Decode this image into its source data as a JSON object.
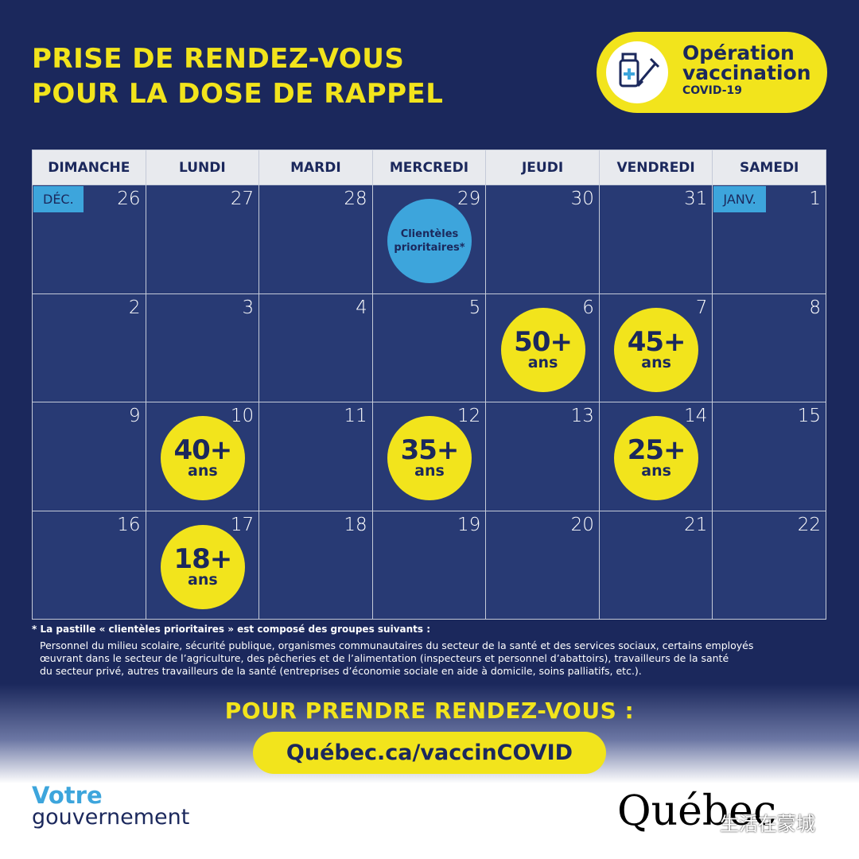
{
  "header": {
    "title_lines": [
      "PRISE DE RENDEZ-VOUS",
      "POUR LA DOSE DE RAPPEL"
    ]
  },
  "badge": {
    "lines": [
      "Opération",
      "vaccination"
    ],
    "small": "COVID-19"
  },
  "calendar": {
    "days": [
      "DIMANCHE",
      "LUNDI",
      "MARDI",
      "MERCREDI",
      "JEUDI",
      "VENDREDI",
      "SAMEDI"
    ],
    "weeks": [
      [
        {
          "day": 26,
          "month": "DÉC."
        },
        {
          "day": 27
        },
        {
          "day": 28
        },
        {
          "day": 29,
          "pill": {
            "lines": [
              "Clientèles",
              "prioritaires*"
            ]
          }
        },
        {
          "day": 30
        },
        {
          "day": 31
        },
        {
          "day": 1,
          "month": "JANV."
        }
      ],
      [
        {
          "day": 2
        },
        {
          "day": 3
        },
        {
          "day": 4
        },
        {
          "day": 5
        },
        {
          "day": 6,
          "pill": {
            "main": "50+",
            "sub": "ans"
          }
        },
        {
          "day": 7,
          "pill": {
            "main": "45+",
            "sub": "ans"
          }
        },
        {
          "day": 8
        }
      ],
      [
        {
          "day": 9
        },
        {
          "day": 10,
          "pill": {
            "main": "40+",
            "sub": "ans"
          }
        },
        {
          "day": 11
        },
        {
          "day": 12,
          "pill": {
            "main": "35+",
            "sub": "ans"
          }
        },
        {
          "day": 13
        },
        {
          "day": 14,
          "pill": {
            "main": "25+",
            "sub": "ans"
          }
        },
        {
          "day": 15
        }
      ],
      [
        {
          "day": 16
        },
        {
          "day": 17,
          "pill": {
            "main": "18+",
            "sub": "ans"
          }
        },
        {
          "day": 18
        },
        {
          "day": 19
        },
        {
          "day": 20
        },
        {
          "day": 21
        },
        {
          "day": 22
        }
      ]
    ]
  },
  "footnote": {
    "title": "* La pastille « clientèles prioritaires » est composé des groupes suivants :",
    "lines": [
      "Personnel du milieu scolaire, sécurité publique, organismes communautaires du secteur de la santé et des services sociaux, certains employés",
      "œuvrant dans le secteur de l’agriculture, des pêcheries et de l’alimentation (inspecteurs et personnel d’abattoirs), travailleurs de la santé",
      "du secteur privé, autres travailleurs de la santé (entreprises d’économie sociale en aide à domicile, soins palliatifs, etc.)."
    ]
  },
  "cta": {
    "title": "POUR PRENDRE RENDEZ-VOUS :",
    "url": "Québec.ca/vaccinCOVID"
  },
  "footer": {
    "left_lines": [
      "Votre",
      "gouvernement"
    ],
    "right": "Québec",
    "watermark": "生活在蒙城"
  }
}
